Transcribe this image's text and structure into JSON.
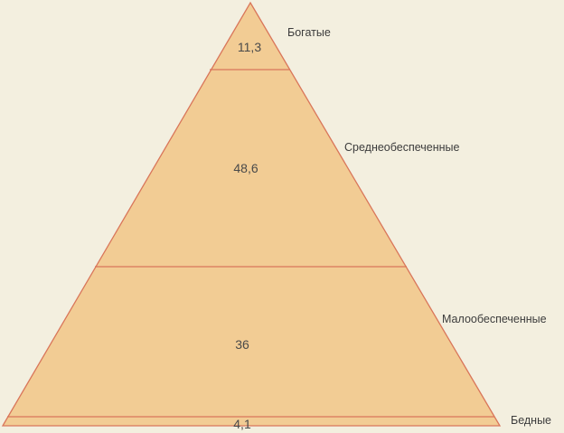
{
  "diagram": {
    "type": "pyramid",
    "colors": {
      "background": "#f3efdf",
      "fill": "#f2cc94",
      "stroke": "#d9765a"
    },
    "tiers": [
      {
        "label": "Богатые",
        "value": "11,3"
      },
      {
        "label": "Среднеобеспеченные",
        "value": "48,6"
      },
      {
        "label": "Малообеспеченные",
        "value": "36"
      },
      {
        "label": "Бедные",
        "value": "4,1"
      }
    ]
  }
}
